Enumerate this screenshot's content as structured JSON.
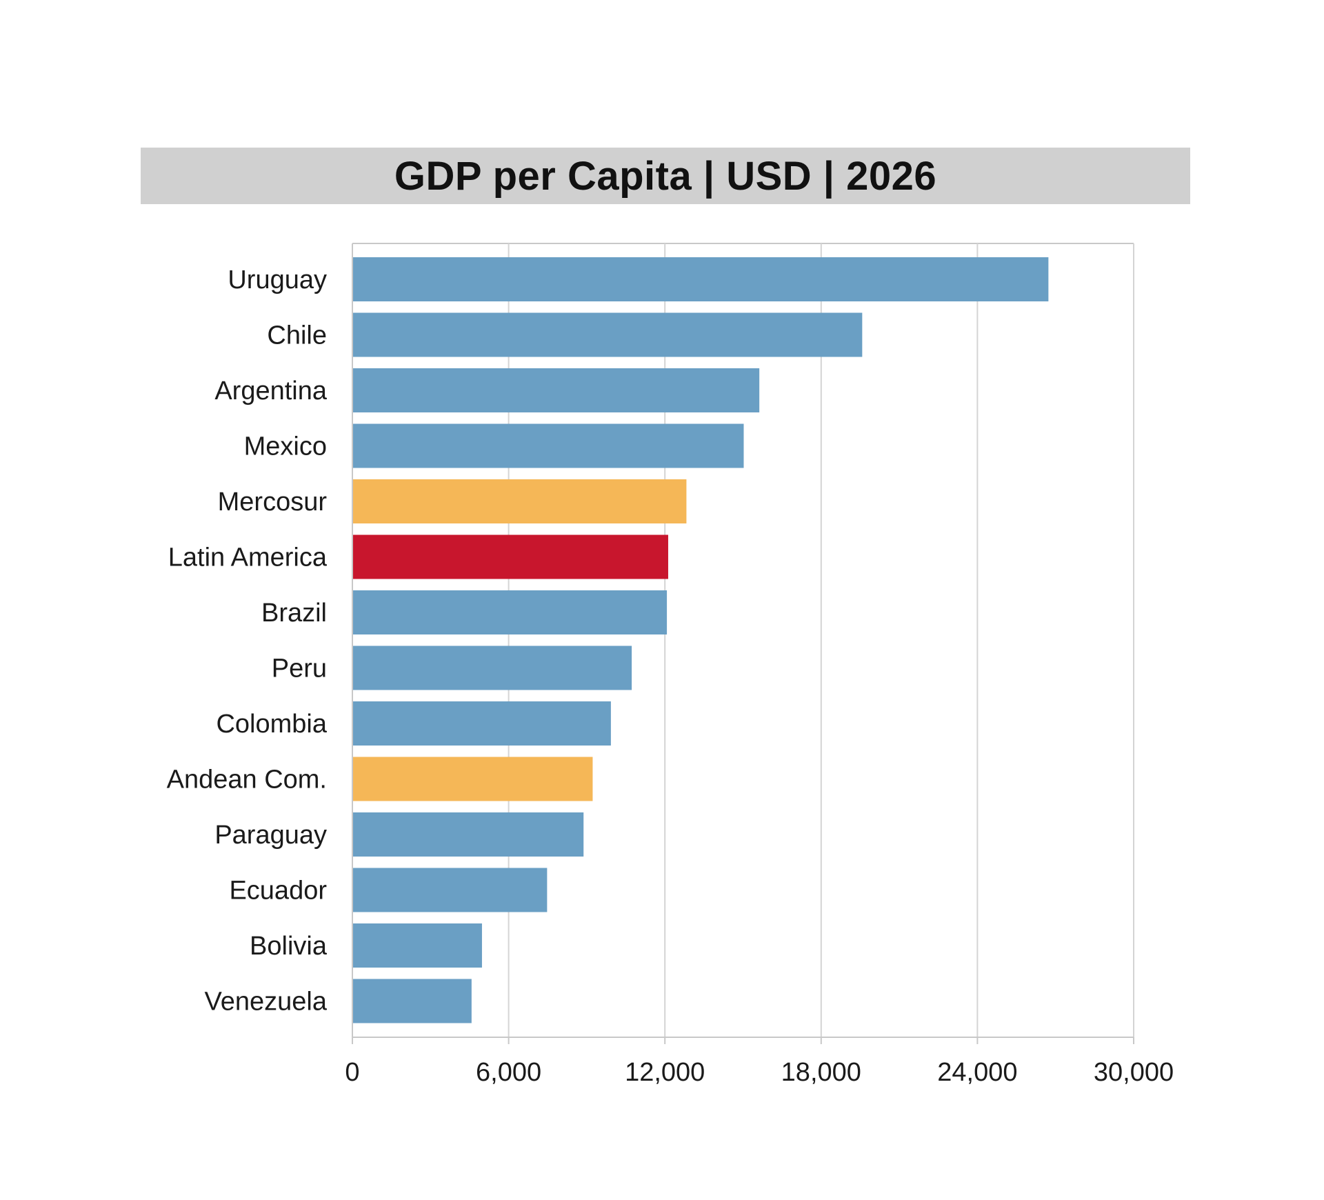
{
  "chart_data": {
    "type": "bar",
    "orientation": "horizontal",
    "title": "GDP per Capita | USD | 2026",
    "categories": [
      "Uruguay",
      "Chile",
      "Argentina",
      "Mexico",
      "Mercosur",
      "Latin America",
      "Brazil",
      "Peru",
      "Colombia",
      "Andean Com.",
      "Paraguay",
      "Ecuador",
      "Bolivia",
      "Venezuela"
    ],
    "values": [
      26700,
      19550,
      15600,
      15000,
      12800,
      12100,
      12050,
      10700,
      9900,
      9200,
      8850,
      7450,
      4950,
      4550
    ],
    "bar_colors": [
      "#6a9fc4",
      "#6a9fc4",
      "#6a9fc4",
      "#6a9fc4",
      "#f5b757",
      "#c8162d",
      "#6a9fc4",
      "#6a9fc4",
      "#6a9fc4",
      "#f5b757",
      "#6a9fc4",
      "#6a9fc4",
      "#6a9fc4",
      "#6a9fc4"
    ],
    "xlim": [
      0,
      30000
    ],
    "xticks": [
      0,
      6000,
      12000,
      18000,
      24000,
      30000
    ],
    "xtick_labels": [
      "0",
      "6,000",
      "12,000",
      "18,000",
      "24,000",
      "30,000"
    ],
    "xlabel": "",
    "ylabel": "",
    "grid": true,
    "legend": "none"
  },
  "colors": {
    "title_background": "#d0d0d0",
    "gridline": "#d4d4d4",
    "axis": "#c8c8c8"
  }
}
